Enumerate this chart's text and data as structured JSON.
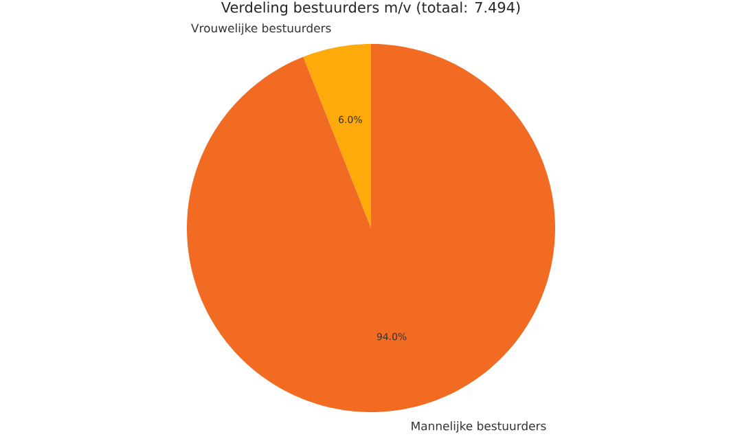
{
  "chart_data": {
    "type": "pie",
    "title": "Verdeling bestuurders m/v (totaal: 7.494)",
    "categories": [
      "Vrouwelijke bestuurders",
      "Mannelijke bestuurders"
    ],
    "values": [
      6.0,
      94.0
    ],
    "value_labels": [
      "6.0%",
      "94.0%"
    ],
    "colors": [
      "#fdaa0a",
      "#f26b22"
    ]
  }
}
